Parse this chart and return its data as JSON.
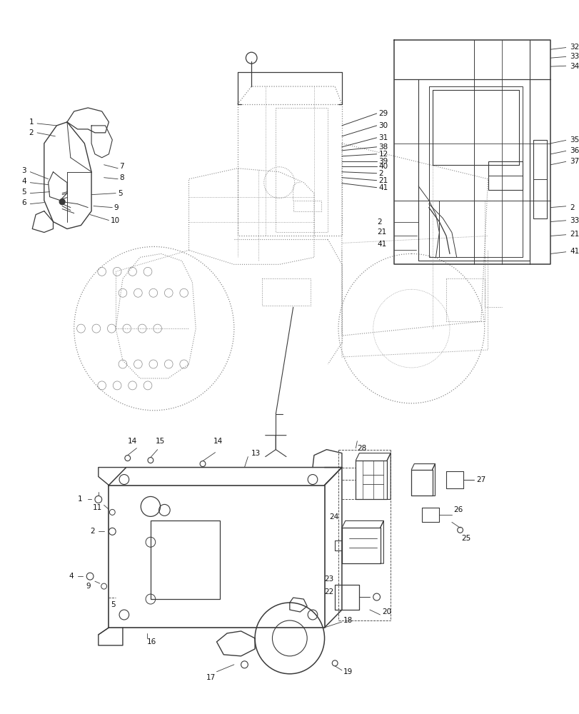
{
  "bg_color": "#ffffff",
  "lc": "#3a3a3a",
  "lc_light": "#888888",
  "fig_width": 8.12,
  "fig_height": 10.0,
  "dpi": 100
}
